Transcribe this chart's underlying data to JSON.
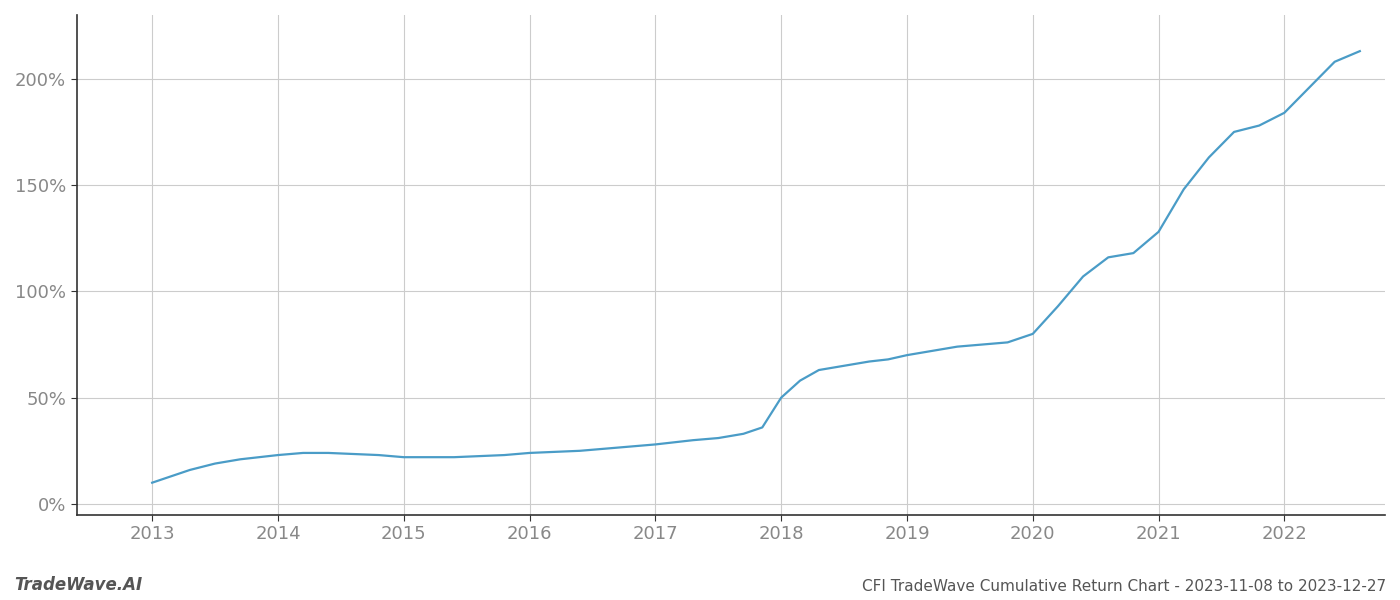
{
  "title": "CFI TradeWave Cumulative Return Chart - 2023-11-08 to 2023-12-27",
  "watermark": "TradeWave.AI",
  "line_color": "#4a9cc7",
  "background_color": "#ffffff",
  "grid_color": "#cccccc",
  "x_years": [
    2013,
    2014,
    2015,
    2016,
    2017,
    2018,
    2019,
    2020,
    2021,
    2022
  ],
  "xlim": [
    2012.4,
    2022.8
  ],
  "ylim": [
    -5,
    230
  ],
  "yticks": [
    0,
    50,
    100,
    150,
    200
  ],
  "ytick_labels": [
    "0%",
    "50%",
    "100%",
    "150%",
    "200%"
  ],
  "line_width": 1.6,
  "title_fontsize": 11,
  "tick_fontsize": 13,
  "watermark_fontsize": 12,
  "x_data": [
    2013.0,
    2013.15,
    2013.3,
    2013.5,
    2013.7,
    2013.85,
    2014.0,
    2014.2,
    2014.4,
    2014.6,
    2014.8,
    2015.0,
    2015.2,
    2015.4,
    2015.6,
    2015.8,
    2016.0,
    2016.2,
    2016.4,
    2016.6,
    2016.8,
    2017.0,
    2017.15,
    2017.3,
    2017.5,
    2017.7,
    2017.85,
    2018.0,
    2018.15,
    2018.3,
    2018.5,
    2018.7,
    2018.85,
    2019.0,
    2019.2,
    2019.4,
    2019.6,
    2019.8,
    2020.0,
    2020.2,
    2020.4,
    2020.6,
    2020.8,
    2021.0,
    2021.2,
    2021.4,
    2021.6,
    2021.8,
    2022.0,
    2022.2,
    2022.4,
    2022.6
  ],
  "y_data": [
    10,
    13,
    16,
    19,
    21,
    22,
    23,
    24,
    24,
    23.5,
    23,
    22,
    22,
    22,
    22.5,
    23,
    24,
    24.5,
    25,
    26,
    27,
    28,
    29,
    30,
    31,
    33,
    36,
    50,
    58,
    63,
    65,
    67,
    68,
    70,
    72,
    74,
    75,
    76,
    80,
    93,
    107,
    116,
    118,
    128,
    148,
    163,
    175,
    178,
    184,
    196,
    208,
    213
  ]
}
